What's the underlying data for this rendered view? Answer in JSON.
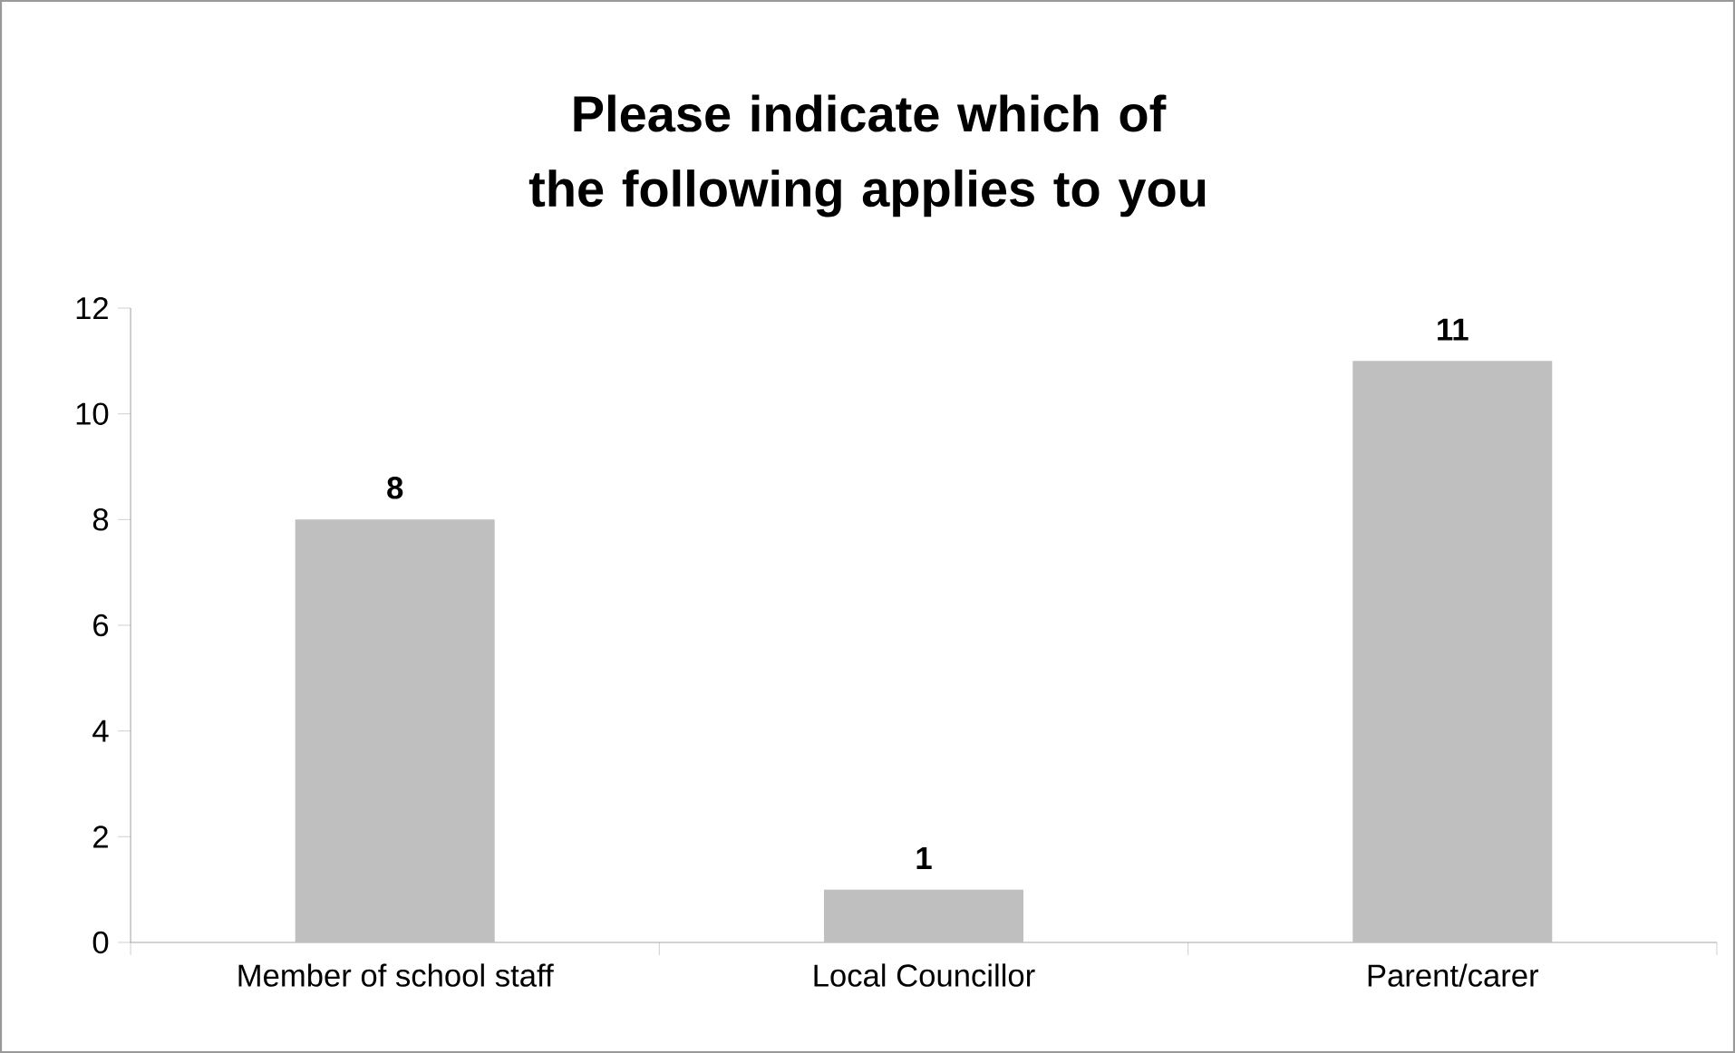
{
  "chart_data": {
    "type": "bar",
    "title": "Please indicate which of the following applies to you",
    "categories": [
      "Member of school staff",
      "Local Councillor",
      "Parent/carer"
    ],
    "values": [
      8,
      1,
      11
    ],
    "color": "#bfbfbf",
    "ylim": [
      0,
      12
    ],
    "yticks": [
      0,
      2,
      4,
      6,
      8,
      10,
      12
    ],
    "data_labels": true
  }
}
